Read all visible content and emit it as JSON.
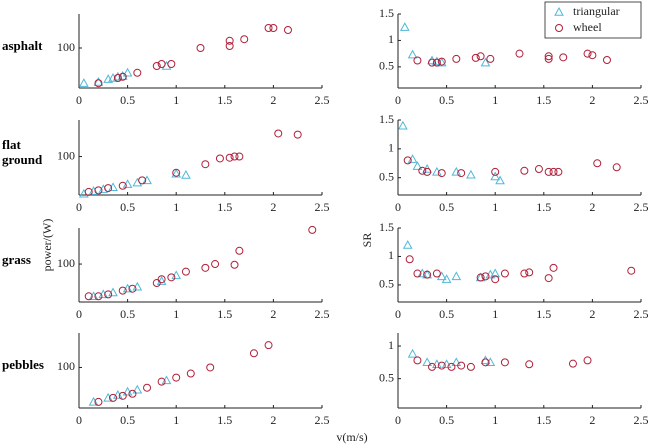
{
  "xlabel": "v(m/s)",
  "ylabel_left": "power/(W)",
  "ylabel_right": "SR",
  "chart_data": [
    {
      "type": "scatter",
      "title": "asphalt",
      "xlim": [
        0,
        2.5
      ],
      "xticks": [
        0,
        0.5,
        1,
        1.5,
        2,
        2.5
      ],
      "ylim": [
        0,
        185
      ],
      "yticks": [
        100
      ],
      "series": [
        {
          "name": "triangular",
          "marker": "triangle",
          "color": "#4fb8d8",
          "x": [
            0.05,
            0.2,
            0.3,
            0.35,
            0.4,
            0.45,
            0.5,
            0.9
          ],
          "values": [
            12,
            15,
            22,
            25,
            28,
            30,
            38,
            55
          ]
        },
        {
          "name": "wheel",
          "marker": "circle",
          "color": "#b0203a",
          "x": [
            0.2,
            0.4,
            0.45,
            0.6,
            0.8,
            0.85,
            0.95,
            1.25,
            1.55,
            1.55,
            1.7,
            1.95,
            2.0,
            2.15
          ],
          "values": [
            12,
            25,
            28,
            38,
            55,
            60,
            60,
            100,
            105,
            118,
            122,
            150,
            150,
            145
          ]
        }
      ]
    },
    {
      "type": "scatter",
      "legend": "upper right",
      "xlim": [
        0,
        2.5
      ],
      "xticks": [
        0,
        0.5,
        1,
        1.5,
        2,
        2.5
      ],
      "ylim": [
        0.1,
        1.5
      ],
      "yticks": [
        0.5,
        1,
        1.5
      ],
      "series": [
        {
          "name": "triangular",
          "marker": "triangle",
          "color": "#4fb8d8",
          "x": [
            0.07,
            0.15,
            0.35,
            0.4,
            0.45,
            0.9
          ],
          "values": [
            1.25,
            0.73,
            0.62,
            0.6,
            0.58,
            0.58
          ]
        },
        {
          "name": "wheel",
          "marker": "circle",
          "color": "#b0203a",
          "x": [
            0.2,
            0.35,
            0.4,
            0.45,
            0.6,
            0.8,
            0.85,
            0.95,
            1.25,
            1.55,
            1.55,
            1.7,
            1.95,
            2.0,
            2.15
          ],
          "values": [
            0.62,
            0.58,
            0.58,
            0.6,
            0.65,
            0.67,
            0.7,
            0.65,
            0.75,
            0.65,
            0.7,
            0.68,
            0.75,
            0.72,
            0.63
          ]
        }
      ]
    },
    {
      "type": "scatter",
      "title": "flat ground",
      "xlim": [
        0,
        2.5
      ],
      "xticks": [
        0,
        0.5,
        1,
        1.5,
        2,
        2.5
      ],
      "ylim": [
        0,
        195
      ],
      "yticks": [
        100
      ],
      "series": [
        {
          "name": "triangular",
          "marker": "triangle",
          "color": "#4fb8d8",
          "x": [
            0.05,
            0.15,
            0.25,
            0.35,
            0.5,
            0.6,
            0.7,
            1.0,
            1.1
          ],
          "values": [
            3,
            10,
            15,
            20,
            28,
            32,
            38,
            55,
            52
          ]
        },
        {
          "name": "wheel",
          "marker": "circle",
          "color": "#b0203a",
          "x": [
            0.1,
            0.2,
            0.3,
            0.45,
            0.65,
            1.0,
            1.3,
            1.45,
            1.55,
            1.6,
            1.65,
            2.05,
            2.25
          ],
          "values": [
            8,
            12,
            18,
            24,
            38,
            58,
            80,
            95,
            97,
            100,
            100,
            160,
            157
          ]
        }
      ]
    },
    {
      "type": "scatter",
      "xlim": [
        0,
        2.5
      ],
      "xticks": [
        0,
        0.5,
        1,
        1.5,
        2,
        2.5
      ],
      "ylim": [
        0.2,
        1.5
      ],
      "yticks": [
        0.5,
        1,
        1.5
      ],
      "series": [
        {
          "name": "triangular",
          "marker": "triangle",
          "color": "#4fb8d8",
          "x": [
            0.05,
            0.15,
            0.2,
            0.3,
            0.4,
            0.6,
            0.75,
            1.0,
            1.05
          ],
          "values": [
            1.4,
            0.82,
            0.7,
            0.65,
            0.6,
            0.6,
            0.55,
            0.52,
            0.45
          ]
        },
        {
          "name": "wheel",
          "marker": "circle",
          "color": "#b0203a",
          "x": [
            0.1,
            0.25,
            0.3,
            0.45,
            0.65,
            1.0,
            1.3,
            1.45,
            1.55,
            1.6,
            1.65,
            2.05,
            2.25
          ],
          "values": [
            0.8,
            0.62,
            0.6,
            0.58,
            0.58,
            0.6,
            0.62,
            0.65,
            0.6,
            0.6,
            0.6,
            0.75,
            0.68
          ]
        }
      ]
    },
    {
      "type": "scatter",
      "title": "grass",
      "xlim": [
        0,
        2.5
      ],
      "xticks": [
        0,
        0.5,
        1,
        1.5,
        2,
        2.5
      ],
      "ylim": [
        0,
        195
      ],
      "yticks": [
        100
      ],
      "series": [
        {
          "name": "triangular",
          "marker": "triangle",
          "color": "#4fb8d8",
          "x": [
            0.15,
            0.25,
            0.35,
            0.5,
            0.6,
            0.85,
            1.0
          ],
          "values": [
            15,
            20,
            25,
            35,
            40,
            55,
            70
          ]
        },
        {
          "name": "wheel",
          "marker": "circle",
          "color": "#b0203a",
          "x": [
            0.1,
            0.2,
            0.3,
            0.45,
            0.55,
            0.8,
            0.85,
            0.95,
            1.1,
            1.3,
            1.4,
            1.6,
            1.65,
            2.4
          ],
          "values": [
            15,
            15,
            20,
            30,
            35,
            50,
            60,
            65,
            80,
            90,
            100,
            98,
            135,
            190
          ]
        }
      ]
    },
    {
      "type": "scatter",
      "xlim": [
        0,
        2.5
      ],
      "xticks": [
        0,
        0.5,
        1,
        1.5,
        2,
        2.5
      ],
      "ylim": [
        0.2,
        1.5
      ],
      "yticks": [
        0.5,
        1,
        1.5
      ],
      "series": [
        {
          "name": "triangular",
          "marker": "triangle",
          "color": "#4fb8d8",
          "x": [
            0.1,
            0.25,
            0.3,
            0.45,
            0.5,
            0.6,
            0.85,
            0.95,
            1.0
          ],
          "values": [
            1.2,
            0.7,
            0.68,
            0.65,
            0.6,
            0.65,
            0.63,
            0.68,
            0.7
          ]
        },
        {
          "name": "wheel",
          "marker": "circle",
          "color": "#b0203a",
          "x": [
            0.12,
            0.2,
            0.3,
            0.4,
            0.85,
            0.9,
            1.0,
            1.1,
            1.3,
            1.35,
            1.55,
            1.6,
            2.4
          ],
          "values": [
            0.95,
            0.7,
            0.68,
            0.7,
            0.63,
            0.65,
            0.6,
            0.7,
            0.7,
            0.72,
            0.62,
            0.8,
            0.75
          ]
        }
      ]
    },
    {
      "type": "scatter",
      "title": "pebbles",
      "xlim": [
        0,
        2.5
      ],
      "xticks": [
        0,
        0.5,
        1,
        1.5,
        2,
        2.5
      ],
      "ylim": [
        0,
        185
      ],
      "yticks": [
        100
      ],
      "series": [
        {
          "name": "triangular",
          "marker": "triangle",
          "color": "#4fb8d8",
          "x": [
            0.15,
            0.3,
            0.4,
            0.5,
            0.6,
            0.9
          ],
          "values": [
            15,
            25,
            32,
            40,
            45,
            68
          ]
        },
        {
          "name": "wheel",
          "marker": "circle",
          "color": "#b0203a",
          "x": [
            0.2,
            0.35,
            0.45,
            0.55,
            0.7,
            0.85,
            1.0,
            1.15,
            1.35,
            1.8,
            1.95
          ],
          "values": [
            15,
            25,
            30,
            35,
            50,
            65,
            75,
            85,
            100,
            135,
            155
          ]
        }
      ]
    },
    {
      "type": "scatter",
      "xlim": [
        0,
        2.5
      ],
      "xticks": [
        0,
        0.5,
        1,
        1.5,
        2,
        2.5
      ],
      "ylim": [
        0.05,
        1.2
      ],
      "yticks": [
        0.5,
        1
      ],
      "series": [
        {
          "name": "triangular",
          "marker": "triangle",
          "color": "#4fb8d8",
          "x": [
            0.15,
            0.3,
            0.4,
            0.5,
            0.6,
            0.9,
            0.95
          ],
          "values": [
            0.88,
            0.75,
            0.72,
            0.72,
            0.75,
            0.78,
            0.75
          ]
        },
        {
          "name": "wheel",
          "marker": "circle",
          "color": "#b0203a",
          "x": [
            0.2,
            0.35,
            0.45,
            0.55,
            0.65,
            0.75,
            0.9,
            1.1,
            1.35,
            1.8,
            1.95
          ],
          "values": [
            0.78,
            0.68,
            0.7,
            0.68,
            0.7,
            0.68,
            0.75,
            0.75,
            0.72,
            0.73,
            0.78
          ]
        }
      ]
    }
  ]
}
